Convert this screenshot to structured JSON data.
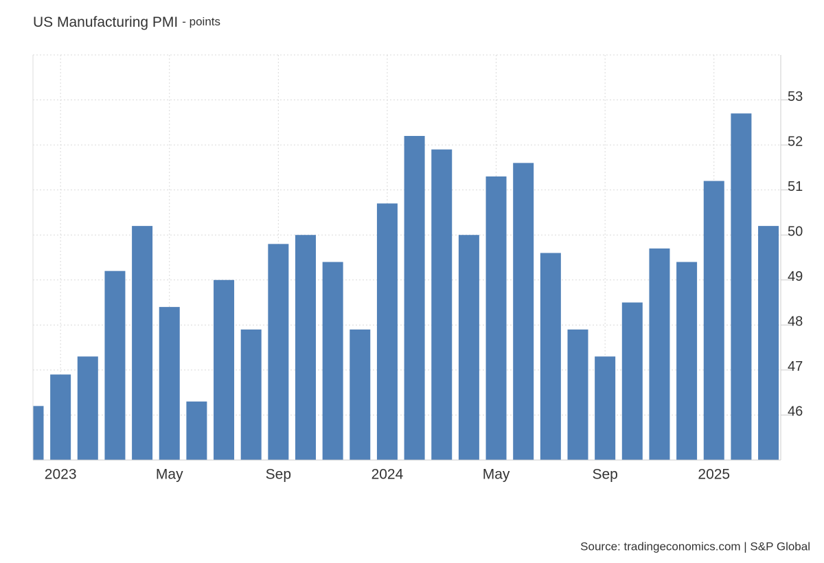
{
  "chart_data": {
    "type": "bar",
    "title": "US Manufacturing PMI",
    "subtitle": "- points",
    "source": "Source: tradingeconomics.com | S&P Global",
    "categories": [
      null,
      "2023",
      null,
      null,
      null,
      "May",
      null,
      null,
      null,
      "Sep",
      null,
      null,
      null,
      "2024",
      null,
      null,
      null,
      "May",
      null,
      null,
      null,
      "Sep",
      null,
      null,
      null,
      "2025",
      null,
      null
    ],
    "values": [
      46.2,
      46.9,
      47.3,
      49.2,
      50.2,
      48.4,
      46.3,
      49.0,
      47.9,
      49.8,
      50.0,
      49.4,
      47.9,
      50.7,
      52.2,
      51.9,
      50.0,
      51.3,
      51.6,
      49.6,
      47.9,
      47.3,
      48.5,
      49.7,
      49.4,
      51.2,
      52.7,
      50.2
    ],
    "color": "#5181b8",
    "ylim": [
      45,
      54
    ],
    "yticks": [
      46,
      47,
      48,
      49,
      50,
      51,
      52,
      53
    ],
    "grid": true
  }
}
